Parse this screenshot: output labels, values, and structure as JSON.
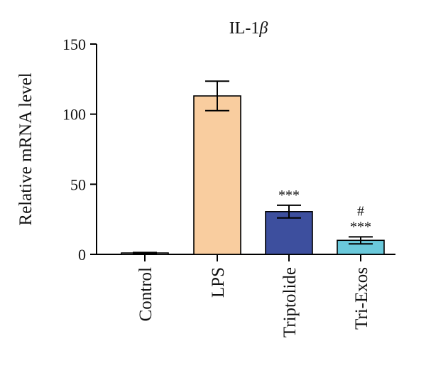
{
  "chart_data": {
    "type": "bar",
    "title": "IL-1",
    "title_symbol": "β",
    "ylabel": "Relative mRNA level",
    "xlabel": "",
    "ylim": [
      0,
      150
    ],
    "yticks": [
      0,
      50,
      100,
      150
    ],
    "grid": false,
    "categories": [
      "Control",
      "LPS",
      "Triptolide",
      "Tri-Exos"
    ],
    "values": [
      1,
      113,
      30.5,
      10
    ],
    "errors": [
      0.3,
      10.5,
      4.5,
      2.5
    ],
    "colors": [
      "#ffffff",
      "#f9cd9f",
      "#3d4f9e",
      "#6ac9db"
    ],
    "annotations": [
      {
        "category": "Triptolide",
        "text": "***"
      },
      {
        "category": "Tri-Exos",
        "text": "***"
      },
      {
        "category": "Tri-Exos",
        "text": "#"
      }
    ]
  }
}
